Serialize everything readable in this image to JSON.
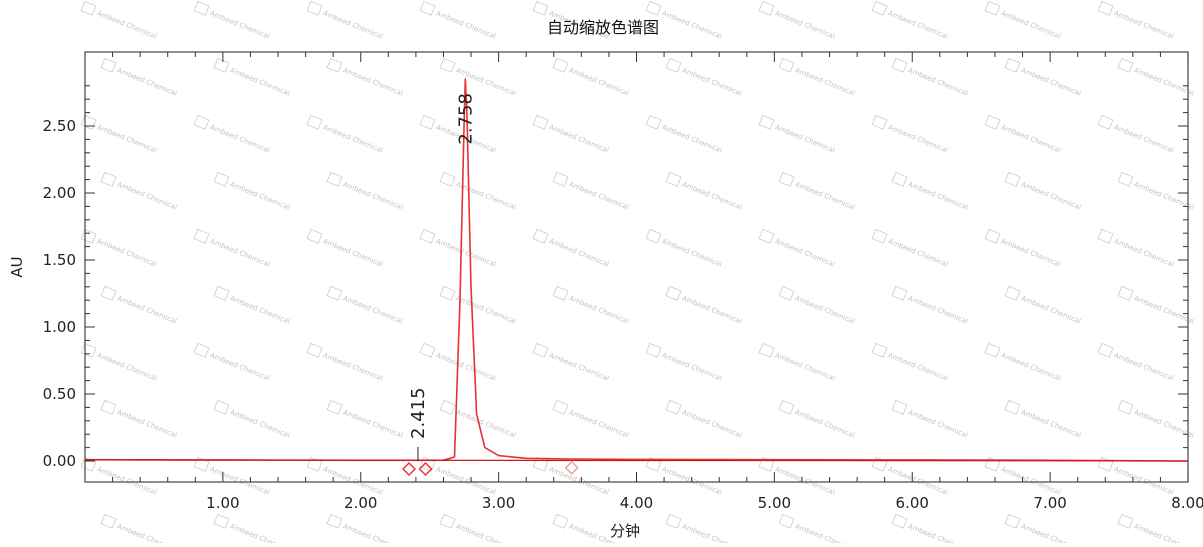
{
  "chart_data": {
    "type": "line",
    "title": "自动缩放色谱图",
    "xlabel": "分钟",
    "ylabel": "AU",
    "xlim": [
      0.0,
      8.0
    ],
    "ylim": [
      -0.12,
      2.92
    ],
    "x_ticks": [
      "1.00",
      "2.00",
      "3.00",
      "4.00",
      "5.00",
      "6.00",
      "7.00",
      "8.00"
    ],
    "y_ticks": [
      "0.00",
      "0.50",
      "1.00",
      "1.50",
      "2.00",
      "2.50"
    ],
    "series": [
      {
        "color": "#e83030",
        "x": [
          0.0,
          1.0,
          2.0,
          2.6,
          2.68,
          2.72,
          2.75,
          2.758,
          2.77,
          2.8,
          2.84,
          2.9,
          3.0,
          3.2,
          3.53,
          4.0,
          5.0,
          6.0,
          7.0,
          8.0
        ],
        "y": [
          0.01,
          0.008,
          0.005,
          0.006,
          0.03,
          1.2,
          2.55,
          2.85,
          2.6,
          1.3,
          0.35,
          0.1,
          0.04,
          0.02,
          0.015,
          0.012,
          0.01,
          0.008,
          0.005,
          0.0
        ]
      }
    ],
    "peak_labels": [
      {
        "x": 2.415,
        "y": 0.0,
        "text": "2.415"
      },
      {
        "x": 2.758,
        "y": 2.85,
        "text": "2.758"
      }
    ],
    "markers": [
      {
        "x": 2.35,
        "y": -0.06,
        "color": "#e83030"
      },
      {
        "x": 2.47,
        "y": -0.06,
        "color": "#e83030"
      },
      {
        "x": 3.53,
        "y": -0.05,
        "color": "#f29a9a"
      }
    ]
  },
  "watermark": {
    "text": "Ambeed Chemical",
    "icon": "A-logo-icon"
  }
}
